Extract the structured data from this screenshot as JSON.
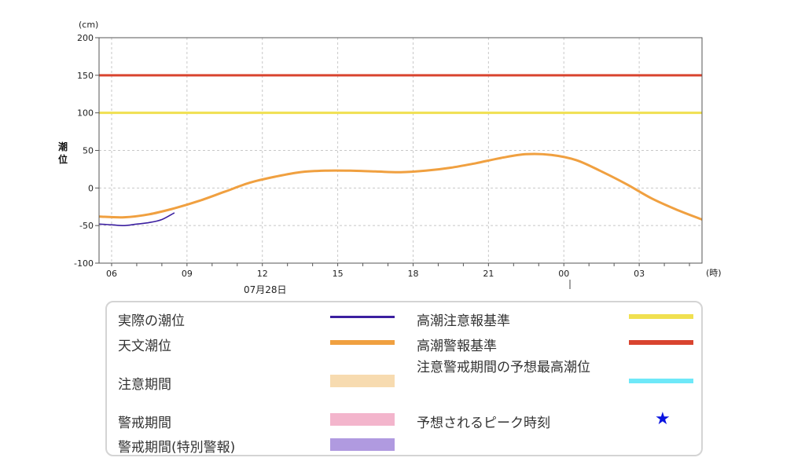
{
  "chart_data": {
    "type": "line",
    "y_unit": "(cm)",
    "x_unit": "(時)",
    "ylabel": "潮\n位",
    "ylim": [
      -100,
      200
    ],
    "yticks": [
      -100,
      -50,
      0,
      50,
      100,
      150,
      200
    ],
    "xlim_hours": [
      5.5,
      29.5
    ],
    "xticks": [
      {
        "hour": 6,
        "label": "06"
      },
      {
        "hour": 9,
        "label": "09"
      },
      {
        "hour": 12,
        "label": "12"
      },
      {
        "hour": 15,
        "label": "15"
      },
      {
        "hour": 18,
        "label": "18"
      },
      {
        "hour": 21,
        "label": "21"
      },
      {
        "hour": 24,
        "label": "00"
      },
      {
        "hour": 27,
        "label": "03"
      }
    ],
    "date_label": "07月28日",
    "grid": true,
    "thresholds": [
      {
        "name": "高潮注意報基準",
        "value": 100,
        "color": "#f0e050"
      },
      {
        "name": "高潮警報基準",
        "value": 150,
        "color": "#d9442f"
      }
    ],
    "series": [
      {
        "name": "実際の潮位",
        "color": "#3b1fa0",
        "x": [
          5.5,
          6.0,
          6.5,
          7.0,
          7.5,
          8.0,
          8.5
        ],
        "y": [
          -48,
          -49,
          -50,
          -48,
          -46,
          -42,
          -33
        ]
      },
      {
        "name": "天文潮位",
        "color": "#f0a040",
        "x": [
          5.5,
          6.5,
          7.5,
          8.5,
          9.5,
          10.5,
          11.5,
          12.5,
          13.5,
          14.5,
          15.5,
          16.5,
          17.5,
          18.5,
          19.5,
          20.5,
          21.5,
          22.5,
          23.5,
          24.5,
          25.5,
          26.5,
          27.5,
          28.5,
          29.5
        ],
        "y": [
          -38,
          -39,
          -35,
          -27,
          -17,
          -5,
          7,
          15,
          21,
          23,
          23,
          22,
          21,
          23,
          27,
          33,
          40,
          45,
          44,
          37,
          22,
          5,
          -14,
          -29,
          -42
        ]
      }
    ]
  },
  "legend": {
    "items": [
      {
        "label": "実際の潮位",
        "color": "#3b1fa0"
      },
      {
        "label": "天文潮位",
        "color": "#f0a040"
      },
      {
        "label": "注意期間",
        "color": "#f7dbb0"
      },
      {
        "label": "警戒期間",
        "color": "#f3b5cc"
      },
      {
        "label": "警戒期間(特別警報)",
        "color": "#b09ae0"
      },
      {
        "label": "高潮注意報基準",
        "color": "#f0e050"
      },
      {
        "label": "高潮警報基準",
        "color": "#d9442f"
      },
      {
        "label": "注意警戒期間の予想最高潮位",
        "color": "#6ee8f8"
      },
      {
        "label": "予想されるピーク時刻",
        "color": "#0a14e0",
        "symbol": "★"
      }
    ]
  }
}
